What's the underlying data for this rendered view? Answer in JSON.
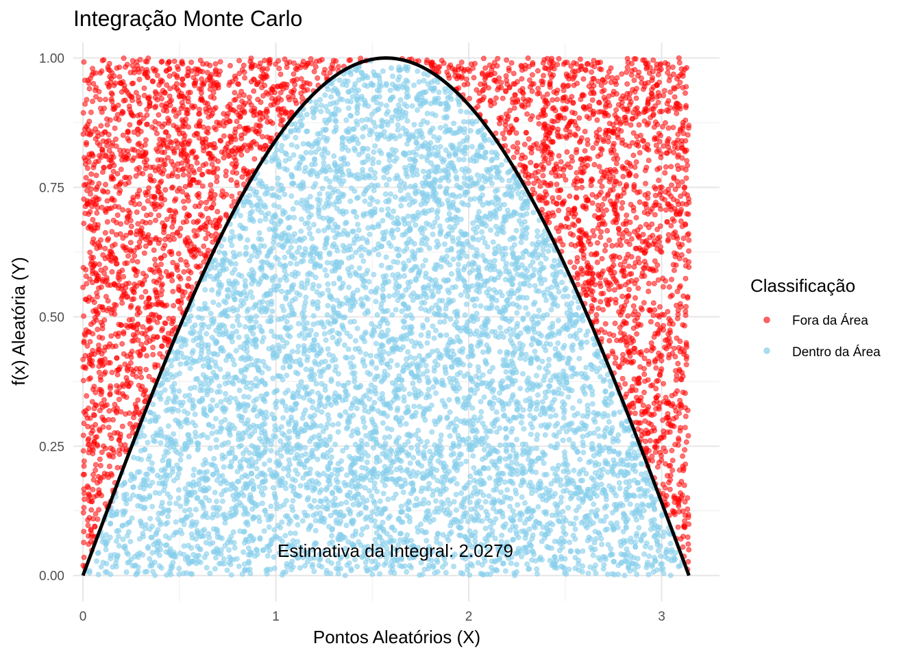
{
  "chart_data": {
    "type": "scatter",
    "title": "Integração Monte Carlo",
    "xlabel": "Pontos Aleatórios (X)",
    "ylabel": "f(x) Aleatória (Y)",
    "xlim": [
      -0.05,
      3.3
    ],
    "ylim": [
      -0.05,
      1.03
    ],
    "x_ticks": [
      0,
      1,
      2,
      3
    ],
    "x_tick_labels": [
      "0",
      "1",
      "2",
      "3"
    ],
    "y_ticks": [
      0,
      0.25,
      0.5,
      0.75,
      1.0
    ],
    "y_tick_labels": [
      "0.00",
      "0.25",
      "0.50",
      "0.75",
      "1.00"
    ],
    "x_minor_ticks": [
      0.5,
      1.5,
      2.5
    ],
    "y_minor_ticks": [
      0.125,
      0.375,
      0.625,
      0.875
    ],
    "grid": true,
    "sampling_region": {
      "x": [
        0,
        3.14159
      ],
      "y": [
        0,
        1
      ]
    },
    "series": [
      {
        "name": "Fora da Área",
        "color": "#ff0000",
        "rule": "y > sin(x)"
      },
      {
        "name": "Dentro da Área",
        "color": "#87ceeb",
        "rule": "y <= sin(x)"
      }
    ],
    "curve": {
      "function": "sin(x)",
      "x_range": [
        0,
        3.14159
      ],
      "color": "#000000"
    },
    "legend": {
      "title": "Classificação",
      "position": "right"
    },
    "annotation": {
      "text": "Estimativa da Integral: 2.0279",
      "x": 1.57,
      "y": 0.05
    }
  }
}
